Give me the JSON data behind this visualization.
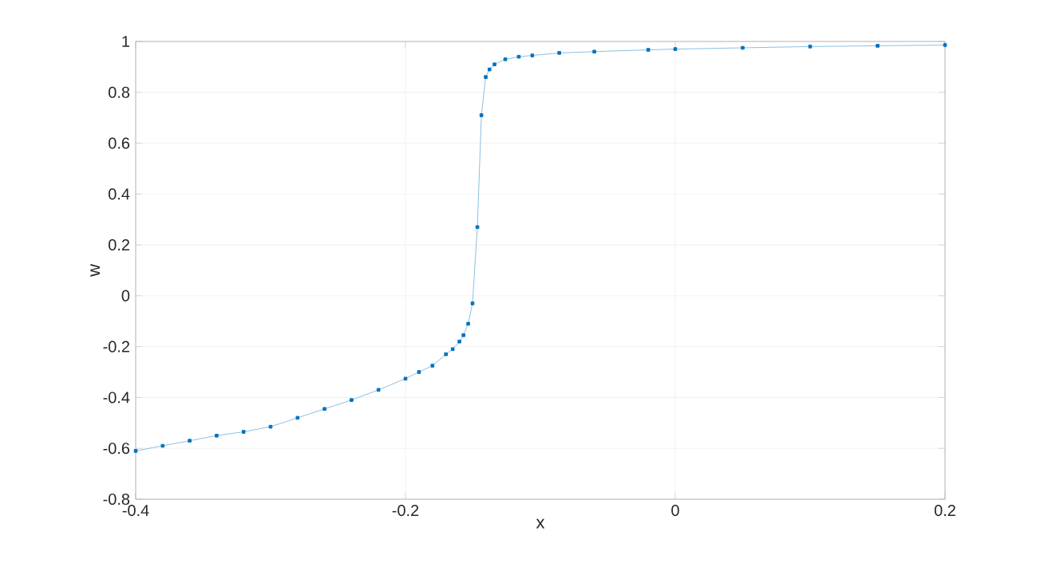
{
  "chart_data": {
    "type": "line",
    "xlabel": "x",
    "ylabel": "w",
    "xlim": [
      -0.4,
      0.2
    ],
    "ylim": [
      -0.8,
      1
    ],
    "xticks": [
      -0.4,
      -0.2,
      0,
      0.2
    ],
    "yticks": [
      -0.8,
      -0.6,
      -0.4,
      -0.2,
      0,
      0.2,
      0.4,
      0.6,
      0.8,
      1
    ],
    "grid": true,
    "marker": "square",
    "line_style": "solid",
    "series": [
      {
        "color": "#0072bd",
        "x": [
          -0.4,
          -0.38,
          -0.36,
          -0.34,
          -0.32,
          -0.3,
          -0.28,
          -0.26,
          -0.24,
          -0.22,
          -0.2,
          -0.19,
          -0.18,
          -0.17,
          -0.165,
          -0.16,
          -0.157,
          -0.1535,
          -0.1503,
          -0.1467,
          -0.1437,
          -0.1405,
          -0.1377,
          -0.134,
          -0.126,
          -0.116,
          -0.106,
          -0.086,
          -0.06,
          -0.02,
          0,
          0.05,
          0.1,
          0.15,
          0.2
        ],
        "values": [
          -0.61,
          -0.59,
          -0.57,
          -0.55,
          -0.535,
          -0.515,
          -0.48,
          -0.445,
          -0.41,
          -0.37,
          -0.326,
          -0.3,
          -0.275,
          -0.23,
          -0.21,
          -0.18,
          -0.155,
          -0.11,
          -0.03,
          0.27,
          0.71,
          0.86,
          0.89,
          0.91,
          0.93,
          0.94,
          0.945,
          0.955,
          0.96,
          0.967,
          0.97,
          0.975,
          0.98,
          0.983,
          0.986
        ]
      }
    ]
  }
}
